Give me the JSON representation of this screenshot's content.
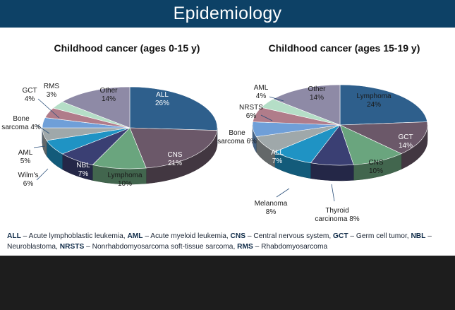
{
  "header": {
    "title": "Epidemiology"
  },
  "chart_data": [
    {
      "type": "pie",
      "title": "Childhood cancer (ages 0-15 y)",
      "slices": [
        {
          "label": "ALL",
          "value": 26,
          "display": "26%",
          "color": "#2e5f8c",
          "text_color": "#ffffff"
        },
        {
          "label": "CNS",
          "value": 21,
          "display": "21%",
          "color": "#6b5869",
          "text_color": "#ffffff"
        },
        {
          "label": "Lymphoma",
          "value": 10,
          "display": "10%",
          "color": "#6aa57e",
          "text_color": "#1a1a1a"
        },
        {
          "label": "NBL",
          "value": 7,
          "display": "7%",
          "color": "#3a3f73",
          "text_color": "#ffffff"
        },
        {
          "label": "Wilm's",
          "value": 6,
          "display": "6%",
          "color": "#1f93c4",
          "text_color": "#1a1a1a"
        },
        {
          "label": "AML",
          "value": 5,
          "display": "5%",
          "color": "#9fa8aa",
          "text_color": "#1a1a1a"
        },
        {
          "label": "Bone sarcoma",
          "value": 4,
          "display": "4%",
          "color": "#6f9fd8",
          "text_color": "#1a1a1a"
        },
        {
          "label": "GCT",
          "value": 4,
          "display": "4%",
          "color": "#b07c8a",
          "text_color": "#1a1a1a"
        },
        {
          "label": "RMS",
          "value": 3,
          "display": "3%",
          "color": "#b5dec7",
          "text_color": "#1a1a1a"
        },
        {
          "label": "Other",
          "value": 14,
          "display": "14%",
          "color": "#8e8aa6",
          "text_color": "#1a1a1a"
        }
      ]
    },
    {
      "type": "pie",
      "title": "Childhood cancer (ages 15-19 y)",
      "slices": [
        {
          "label": "Lymphoma",
          "value": 24,
          "display": "24%",
          "color": "#2e5f8c",
          "text_color": "#1a1a1a"
        },
        {
          "label": "GCT",
          "value": 14,
          "display": "14%",
          "color": "#6b5869",
          "text_color": "#ffffff"
        },
        {
          "label": "CNS",
          "value": 10,
          "display": "10%",
          "color": "#6aa57e",
          "text_color": "#1a1a1a"
        },
        {
          "label": "Thyroid carcinoma",
          "value": 8,
          "display": "8%",
          "color": "#3a3f73",
          "text_color": "#1a1a1a"
        },
        {
          "label": "Melanoma",
          "value": 8,
          "display": "8%",
          "color": "#1f93c4",
          "text_color": "#1a1a1a"
        },
        {
          "label": "ALL",
          "value": 7,
          "display": "7%",
          "color": "#9fa8aa",
          "text_color": "#ffffff"
        },
        {
          "label": "Bone sarcoma",
          "value": 6,
          "display": "6%",
          "color": "#6f9fd8",
          "text_color": "#1a1a1a"
        },
        {
          "label": "NRSTS",
          "value": 6,
          "display": "6%",
          "color": "#b07c8a",
          "text_color": "#1a1a1a"
        },
        {
          "label": "AML",
          "value": 4,
          "display": "4%",
          "color": "#b5dec7",
          "text_color": "#1a1a1a"
        },
        {
          "label": "Other",
          "value": 14,
          "display": "14%",
          "color": "#8e8aa6",
          "text_color": "#1a1a1a"
        }
      ]
    }
  ],
  "footnote": [
    {
      "abbr": "ALL",
      "text": " – Acute lymphoblastic leukemia, "
    },
    {
      "abbr": "AML",
      "text": " – Acute myeloid leukemia, "
    },
    {
      "abbr": "CNS",
      "text": " – Central nervous system, "
    },
    {
      "abbr": "GCT",
      "text": " – Germ cell tumor, "
    },
    {
      "abbr": "NBL",
      "text": " – Neuroblastoma, "
    },
    {
      "abbr": "NRSTS",
      "text": " – Nonrhabdomyosarcoma soft-tissue sarcoma, "
    },
    {
      "abbr": "RMS",
      "text": " – Rhabdomyosarcoma"
    }
  ]
}
